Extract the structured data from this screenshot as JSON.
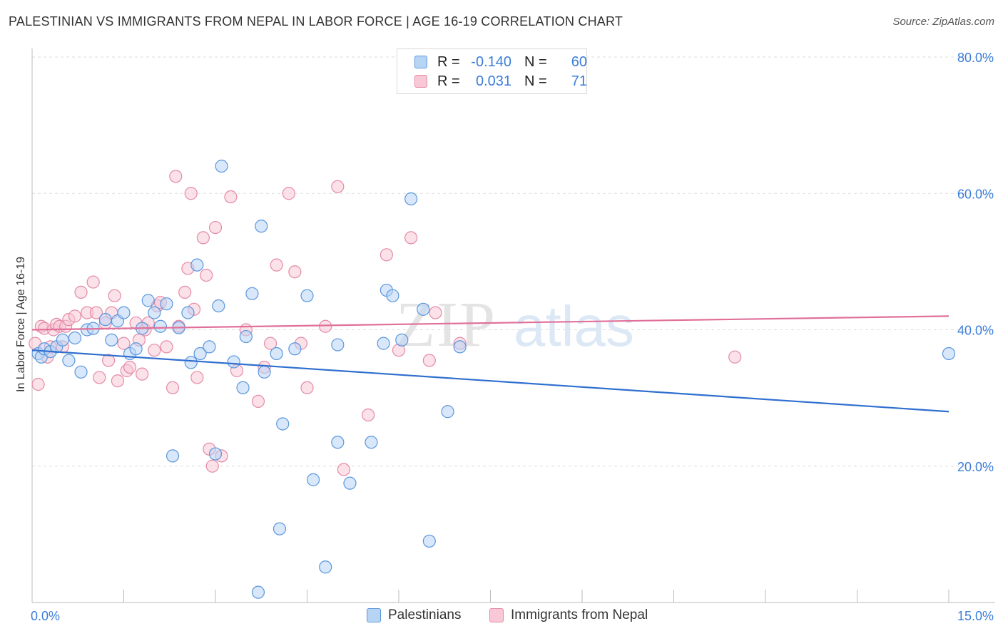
{
  "header": {
    "title": "PALESTINIAN VS IMMIGRANTS FROM NEPAL IN LABOR FORCE | AGE 16-19 CORRELATION CHART",
    "source": "Source: ZipAtlas.com"
  },
  "legend": {
    "rows": [
      {
        "r_label": "R =",
        "r_value": "-0.140",
        "n_label": "N =",
        "n_value": "60"
      },
      {
        "r_label": "R =",
        "r_value": "0.031",
        "n_label": "N =",
        "n_value": "71"
      }
    ]
  },
  "bottom_legend": {
    "series_a": "Palestinians",
    "series_b": "Immigrants from Nepal"
  },
  "colors": {
    "blue_fill": "#b8d4f5",
    "blue_stroke": "#5b97dc",
    "blue_line": "#2f6fcf",
    "pink_fill": "#f8c8d6",
    "pink_stroke": "#e58aa8",
    "pink_line": "#e0709a",
    "axis_label": "#3b7dd8",
    "grid": "#dddddd"
  },
  "chart_data": {
    "type": "scatter",
    "title": "PALESTINIAN VS IMMIGRANTS FROM NEPAL IN LABOR FORCE | AGE 16-19 CORRELATION CHART",
    "xlabel": "",
    "ylabel": "In Labor Force | Age 16-19",
    "xlim": [
      0,
      15
    ],
    "ylim": [
      0,
      80
    ],
    "x_tick_labels": [
      "0.0%",
      "15.0%"
    ],
    "y_ticks": [
      20,
      40,
      60,
      80
    ],
    "y_tick_labels": [
      "20.0%",
      "40.0%",
      "60.0%",
      "80.0%"
    ],
    "grid": true,
    "watermark": "ZIPatlas",
    "series": [
      {
        "name": "Palestinians",
        "color": "blue",
        "r": -0.14,
        "n": 60,
        "trend": {
          "x": [
            0,
            15
          ],
          "y": [
            37.0,
            28.0
          ]
        },
        "points": [
          [
            0.1,
            36.5
          ],
          [
            0.15,
            36.0
          ],
          [
            0.2,
            37.2
          ],
          [
            0.3,
            36.8
          ],
          [
            0.4,
            37.5
          ],
          [
            0.5,
            38.5
          ],
          [
            0.6,
            35.5
          ],
          [
            0.7,
            38.8
          ],
          [
            0.8,
            33.8
          ],
          [
            0.9,
            40.0
          ],
          [
            1.0,
            40.2
          ],
          [
            1.2,
            41.5
          ],
          [
            1.3,
            38.5
          ],
          [
            1.4,
            41.3
          ],
          [
            1.5,
            42.5
          ],
          [
            1.6,
            36.5
          ],
          [
            1.7,
            37.2
          ],
          [
            1.8,
            40.2
          ],
          [
            1.9,
            44.3
          ],
          [
            2.0,
            42.5
          ],
          [
            2.1,
            40.5
          ],
          [
            2.2,
            43.8
          ],
          [
            2.3,
            21.5
          ],
          [
            2.4,
            40.3
          ],
          [
            2.55,
            42.5
          ],
          [
            2.6,
            35.2
          ],
          [
            2.7,
            49.5
          ],
          [
            2.75,
            36.5
          ],
          [
            2.9,
            37.5
          ],
          [
            3.0,
            21.8
          ],
          [
            3.05,
            43.5
          ],
          [
            3.1,
            64.0
          ],
          [
            3.3,
            35.3
          ],
          [
            3.45,
            31.5
          ],
          [
            3.5,
            39.0
          ],
          [
            3.6,
            45.3
          ],
          [
            3.75,
            55.2
          ],
          [
            3.8,
            33.8
          ],
          [
            4.0,
            36.5
          ],
          [
            4.05,
            10.8
          ],
          [
            4.1,
            26.2
          ],
          [
            4.3,
            37.2
          ],
          [
            4.5,
            45.0
          ],
          [
            4.6,
            18.0
          ],
          [
            4.8,
            5.2
          ],
          [
            5.0,
            23.5
          ],
          [
            5.2,
            17.5
          ],
          [
            5.55,
            23.5
          ],
          [
            5.75,
            38.0
          ],
          [
            5.8,
            45.8
          ],
          [
            5.9,
            45.0
          ],
          [
            6.05,
            38.5
          ],
          [
            6.2,
            59.2
          ],
          [
            6.4,
            43.0
          ],
          [
            6.5,
            9.0
          ],
          [
            6.8,
            28.0
          ],
          [
            7.0,
            37.5
          ],
          [
            3.7,
            1.5
          ],
          [
            5.0,
            37.8
          ],
          [
            15.0,
            36.5
          ]
        ]
      },
      {
        "name": "Immigrants from Nepal",
        "color": "pink",
        "r": 0.031,
        "n": 71,
        "trend": {
          "x": [
            0,
            15
          ],
          "y": [
            40.0,
            42.0
          ]
        },
        "points": [
          [
            0.1,
            32.0
          ],
          [
            0.15,
            40.5
          ],
          [
            0.2,
            40.2
          ],
          [
            0.25,
            36.0
          ],
          [
            0.3,
            37.5
          ],
          [
            0.35,
            40.0
          ],
          [
            0.4,
            40.8
          ],
          [
            0.45,
            40.5
          ],
          [
            0.5,
            37.5
          ],
          [
            0.55,
            40.5
          ],
          [
            0.6,
            41.5
          ],
          [
            0.7,
            42.0
          ],
          [
            0.8,
            45.5
          ],
          [
            0.9,
            42.5
          ],
          [
            1.0,
            47.0
          ],
          [
            1.05,
            42.5
          ],
          [
            1.1,
            33.0
          ],
          [
            1.2,
            41.0
          ],
          [
            1.25,
            35.5
          ],
          [
            1.3,
            42.5
          ],
          [
            1.35,
            45.0
          ],
          [
            1.4,
            32.5
          ],
          [
            1.5,
            38.0
          ],
          [
            1.55,
            34.0
          ],
          [
            1.6,
            34.5
          ],
          [
            1.7,
            41.0
          ],
          [
            1.75,
            38.5
          ],
          [
            1.8,
            33.5
          ],
          [
            1.85,
            40.0
          ],
          [
            1.9,
            41.0
          ],
          [
            2.0,
            37.0
          ],
          [
            2.05,
            43.5
          ],
          [
            2.1,
            44.0
          ],
          [
            2.2,
            37.5
          ],
          [
            2.3,
            31.5
          ],
          [
            2.35,
            62.5
          ],
          [
            2.4,
            40.5
          ],
          [
            2.5,
            45.5
          ],
          [
            2.55,
            49.0
          ],
          [
            2.6,
            60.0
          ],
          [
            2.65,
            43.0
          ],
          [
            2.7,
            33.0
          ],
          [
            2.8,
            53.5
          ],
          [
            2.85,
            48.0
          ],
          [
            2.9,
            22.5
          ],
          [
            2.95,
            20.0
          ],
          [
            3.0,
            55.0
          ],
          [
            3.1,
            21.5
          ],
          [
            3.25,
            59.5
          ],
          [
            3.35,
            34.0
          ],
          [
            3.5,
            40.0
          ],
          [
            3.7,
            29.5
          ],
          [
            3.8,
            34.5
          ],
          [
            3.9,
            38.0
          ],
          [
            4.0,
            49.5
          ],
          [
            4.2,
            60.0
          ],
          [
            4.3,
            48.5
          ],
          [
            4.4,
            38.0
          ],
          [
            4.5,
            31.5
          ],
          [
            4.8,
            40.5
          ],
          [
            5.0,
            61.0
          ],
          [
            5.1,
            19.5
          ],
          [
            5.5,
            27.5
          ],
          [
            5.8,
            51.0
          ],
          [
            6.0,
            37.0
          ],
          [
            6.2,
            53.5
          ],
          [
            6.5,
            35.5
          ],
          [
            6.6,
            42.5
          ],
          [
            7.0,
            38.0
          ],
          [
            11.5,
            36.0
          ],
          [
            0.05,
            38.0
          ]
        ]
      }
    ]
  }
}
